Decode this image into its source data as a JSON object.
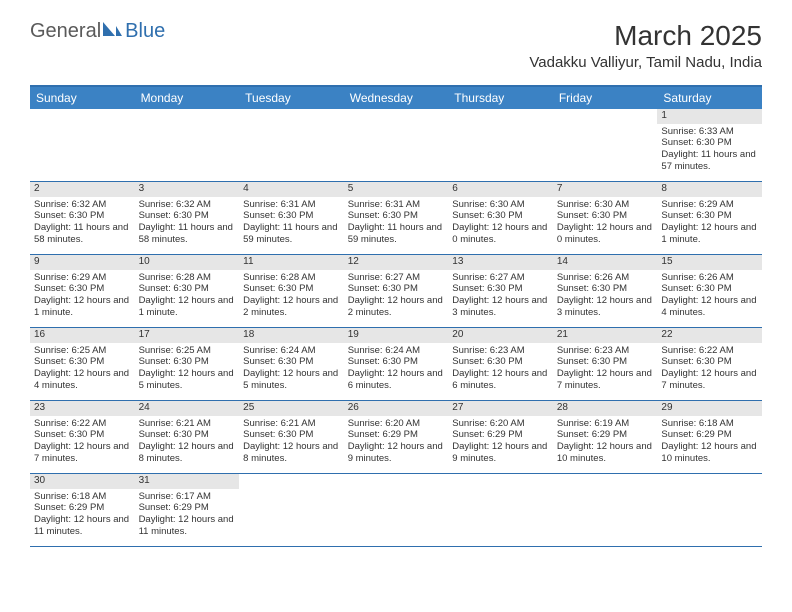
{
  "logo": {
    "text1": "General",
    "text2": "Blue"
  },
  "title": "March 2025",
  "location": "Vadakku Valliyur, Tamil Nadu, India",
  "colors": {
    "header_bg": "#3b82c4",
    "header_text": "#ffffff",
    "border": "#2f6fae",
    "daynum_bg": "#e6e6e6",
    "text": "#333333",
    "logo_gray": "#5a5a5a",
    "logo_blue": "#2f6fae"
  },
  "weekdays": [
    "Sunday",
    "Monday",
    "Tuesday",
    "Wednesday",
    "Thursday",
    "Friday",
    "Saturday"
  ],
  "weeks": [
    [
      {
        "n": "",
        "sr": "",
        "ss": "",
        "dl": ""
      },
      {
        "n": "",
        "sr": "",
        "ss": "",
        "dl": ""
      },
      {
        "n": "",
        "sr": "",
        "ss": "",
        "dl": ""
      },
      {
        "n": "",
        "sr": "",
        "ss": "",
        "dl": ""
      },
      {
        "n": "",
        "sr": "",
        "ss": "",
        "dl": ""
      },
      {
        "n": "",
        "sr": "",
        "ss": "",
        "dl": ""
      },
      {
        "n": "1",
        "sr": "Sunrise: 6:33 AM",
        "ss": "Sunset: 6:30 PM",
        "dl": "Daylight: 11 hours and 57 minutes."
      }
    ],
    [
      {
        "n": "2",
        "sr": "Sunrise: 6:32 AM",
        "ss": "Sunset: 6:30 PM",
        "dl": "Daylight: 11 hours and 58 minutes."
      },
      {
        "n": "3",
        "sr": "Sunrise: 6:32 AM",
        "ss": "Sunset: 6:30 PM",
        "dl": "Daylight: 11 hours and 58 minutes."
      },
      {
        "n": "4",
        "sr": "Sunrise: 6:31 AM",
        "ss": "Sunset: 6:30 PM",
        "dl": "Daylight: 11 hours and 59 minutes."
      },
      {
        "n": "5",
        "sr": "Sunrise: 6:31 AM",
        "ss": "Sunset: 6:30 PM",
        "dl": "Daylight: 11 hours and 59 minutes."
      },
      {
        "n": "6",
        "sr": "Sunrise: 6:30 AM",
        "ss": "Sunset: 6:30 PM",
        "dl": "Daylight: 12 hours and 0 minutes."
      },
      {
        "n": "7",
        "sr": "Sunrise: 6:30 AM",
        "ss": "Sunset: 6:30 PM",
        "dl": "Daylight: 12 hours and 0 minutes."
      },
      {
        "n": "8",
        "sr": "Sunrise: 6:29 AM",
        "ss": "Sunset: 6:30 PM",
        "dl": "Daylight: 12 hours and 1 minute."
      }
    ],
    [
      {
        "n": "9",
        "sr": "Sunrise: 6:29 AM",
        "ss": "Sunset: 6:30 PM",
        "dl": "Daylight: 12 hours and 1 minute."
      },
      {
        "n": "10",
        "sr": "Sunrise: 6:28 AM",
        "ss": "Sunset: 6:30 PM",
        "dl": "Daylight: 12 hours and 1 minute."
      },
      {
        "n": "11",
        "sr": "Sunrise: 6:28 AM",
        "ss": "Sunset: 6:30 PM",
        "dl": "Daylight: 12 hours and 2 minutes."
      },
      {
        "n": "12",
        "sr": "Sunrise: 6:27 AM",
        "ss": "Sunset: 6:30 PM",
        "dl": "Daylight: 12 hours and 2 minutes."
      },
      {
        "n": "13",
        "sr": "Sunrise: 6:27 AM",
        "ss": "Sunset: 6:30 PM",
        "dl": "Daylight: 12 hours and 3 minutes."
      },
      {
        "n": "14",
        "sr": "Sunrise: 6:26 AM",
        "ss": "Sunset: 6:30 PM",
        "dl": "Daylight: 12 hours and 3 minutes."
      },
      {
        "n": "15",
        "sr": "Sunrise: 6:26 AM",
        "ss": "Sunset: 6:30 PM",
        "dl": "Daylight: 12 hours and 4 minutes."
      }
    ],
    [
      {
        "n": "16",
        "sr": "Sunrise: 6:25 AM",
        "ss": "Sunset: 6:30 PM",
        "dl": "Daylight: 12 hours and 4 minutes."
      },
      {
        "n": "17",
        "sr": "Sunrise: 6:25 AM",
        "ss": "Sunset: 6:30 PM",
        "dl": "Daylight: 12 hours and 5 minutes."
      },
      {
        "n": "18",
        "sr": "Sunrise: 6:24 AM",
        "ss": "Sunset: 6:30 PM",
        "dl": "Daylight: 12 hours and 5 minutes."
      },
      {
        "n": "19",
        "sr": "Sunrise: 6:24 AM",
        "ss": "Sunset: 6:30 PM",
        "dl": "Daylight: 12 hours and 6 minutes."
      },
      {
        "n": "20",
        "sr": "Sunrise: 6:23 AM",
        "ss": "Sunset: 6:30 PM",
        "dl": "Daylight: 12 hours and 6 minutes."
      },
      {
        "n": "21",
        "sr": "Sunrise: 6:23 AM",
        "ss": "Sunset: 6:30 PM",
        "dl": "Daylight: 12 hours and 7 minutes."
      },
      {
        "n": "22",
        "sr": "Sunrise: 6:22 AM",
        "ss": "Sunset: 6:30 PM",
        "dl": "Daylight: 12 hours and 7 minutes."
      }
    ],
    [
      {
        "n": "23",
        "sr": "Sunrise: 6:22 AM",
        "ss": "Sunset: 6:30 PM",
        "dl": "Daylight: 12 hours and 7 minutes."
      },
      {
        "n": "24",
        "sr": "Sunrise: 6:21 AM",
        "ss": "Sunset: 6:30 PM",
        "dl": "Daylight: 12 hours and 8 minutes."
      },
      {
        "n": "25",
        "sr": "Sunrise: 6:21 AM",
        "ss": "Sunset: 6:30 PM",
        "dl": "Daylight: 12 hours and 8 minutes."
      },
      {
        "n": "26",
        "sr": "Sunrise: 6:20 AM",
        "ss": "Sunset: 6:29 PM",
        "dl": "Daylight: 12 hours and 9 minutes."
      },
      {
        "n": "27",
        "sr": "Sunrise: 6:20 AM",
        "ss": "Sunset: 6:29 PM",
        "dl": "Daylight: 12 hours and 9 minutes."
      },
      {
        "n": "28",
        "sr": "Sunrise: 6:19 AM",
        "ss": "Sunset: 6:29 PM",
        "dl": "Daylight: 12 hours and 10 minutes."
      },
      {
        "n": "29",
        "sr": "Sunrise: 6:18 AM",
        "ss": "Sunset: 6:29 PM",
        "dl": "Daylight: 12 hours and 10 minutes."
      }
    ],
    [
      {
        "n": "30",
        "sr": "Sunrise: 6:18 AM",
        "ss": "Sunset: 6:29 PM",
        "dl": "Daylight: 12 hours and 11 minutes."
      },
      {
        "n": "31",
        "sr": "Sunrise: 6:17 AM",
        "ss": "Sunset: 6:29 PM",
        "dl": "Daylight: 12 hours and 11 minutes."
      },
      {
        "n": "",
        "sr": "",
        "ss": "",
        "dl": ""
      },
      {
        "n": "",
        "sr": "",
        "ss": "",
        "dl": ""
      },
      {
        "n": "",
        "sr": "",
        "ss": "",
        "dl": ""
      },
      {
        "n": "",
        "sr": "",
        "ss": "",
        "dl": ""
      },
      {
        "n": "",
        "sr": "",
        "ss": "",
        "dl": ""
      }
    ]
  ]
}
